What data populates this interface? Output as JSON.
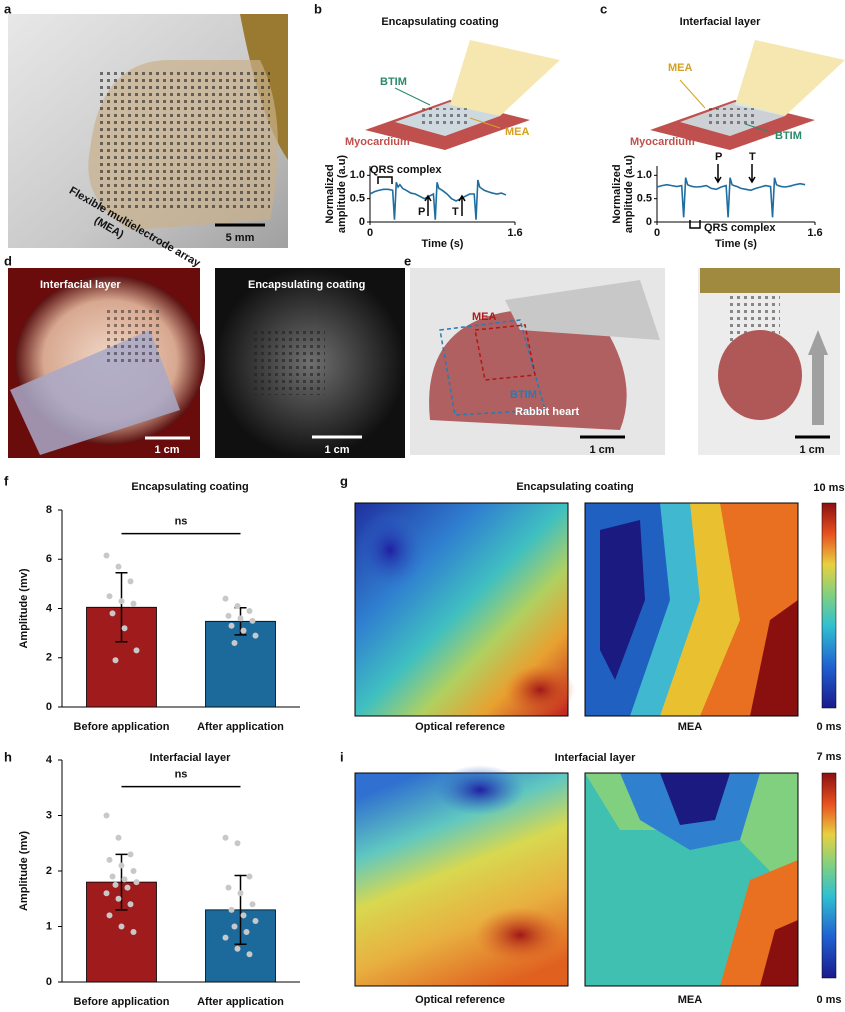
{
  "panel_letters": [
    "a",
    "b",
    "c",
    "d",
    "e",
    "f",
    "g",
    "h",
    "i"
  ],
  "photo_a": {
    "label_line1": "Flexible multielectrode array",
    "label_line2": "(MEA)",
    "scale": "5 mm"
  },
  "schematic_b": {
    "title": "Encapsulating coating",
    "btim": "BTIM",
    "mea": "MEA",
    "tissue": "Myocardium"
  },
  "schematic_c": {
    "title": "Interfacial layer",
    "btim": "BTIM",
    "mea": "MEA",
    "tissue": "Myocardium"
  },
  "photo_d": {
    "left_label": "Interfacial layer",
    "right_label": "Encapsulating coating",
    "left_scale": "1 cm",
    "right_scale": "1 cm"
  },
  "photo_e": {
    "mea": "MEA",
    "btim": "BTIM",
    "heart": "Rabbit heart",
    "left_scale": "1 cm",
    "right_scale": "1 cm"
  },
  "heatmaps": [
    {
      "title": "Encapsulating coating",
      "left_label": "Optical reference",
      "right_label": "MEA",
      "colorbar_max": "10 ms",
      "colorbar_min": "0 ms"
    },
    {
      "title": "Interfacial layer",
      "left_label": "Optical reference",
      "right_label": "MEA",
      "colorbar_max": "7 ms",
      "colorbar_min": "0 ms"
    }
  ],
  "chart_data": [
    {
      "type": "line",
      "xlabel": "Time (s)",
      "ylabel": [
        "Normalized",
        "amplitude (a.u)"
      ],
      "color": "#1f6ea0",
      "xlim": [
        0,
        1.6
      ],
      "xticks": [
        0,
        1.6
      ],
      "ylim": [
        0,
        1.2
      ],
      "yticks": [
        0,
        0.5,
        {
          "value": 1,
          "label": "1.0"
        }
      ],
      "annotations": [
        "QRS complex",
        "P",
        "T"
      ],
      "x": [
        0,
        0.05,
        0.1,
        0.15,
        0.2,
        0.25,
        0.27,
        0.29,
        0.31,
        0.33,
        0.36,
        0.4,
        0.45,
        0.5,
        0.55,
        0.6,
        0.65,
        0.7,
        0.72,
        0.74,
        0.76,
        0.78,
        0.81,
        0.85,
        0.9,
        0.95,
        1.0,
        1.05,
        1.1,
        1.15,
        1.17,
        1.19,
        1.21,
        1.23,
        1.26,
        1.3,
        1.35,
        1.4,
        1.45,
        1.5
      ],
      "values": [
        0.6,
        0.65,
        0.68,
        0.7,
        0.7,
        0.68,
        0.05,
        0.85,
        0.75,
        0.8,
        0.72,
        0.68,
        0.62,
        0.6,
        0.55,
        0.5,
        0.55,
        0.6,
        0.05,
        0.85,
        0.72,
        0.7,
        0.66,
        0.6,
        0.5,
        0.45,
        0.5,
        0.55,
        0.6,
        0.6,
        0.05,
        0.9,
        0.75,
        0.72,
        0.68,
        0.65,
        0.62,
        0.6,
        0.62,
        0.58
      ]
    },
    {
      "type": "line",
      "xlabel": "Time (s)",
      "ylabel": [
        "Normalized",
        "amplitude (a.u)"
      ],
      "color": "#1f6ea0",
      "xlim": [
        0,
        1.6
      ],
      "xticks": [
        0,
        1.6
      ],
      "ylim": [
        0,
        1.2
      ],
      "yticks": [
        0,
        0.5,
        {
          "value": 1,
          "label": "1.0"
        }
      ],
      "annotations": [
        "QRS complex",
        "P",
        "T"
      ],
      "x": [
        0,
        0.05,
        0.1,
        0.15,
        0.2,
        0.25,
        0.27,
        0.29,
        0.31,
        0.33,
        0.36,
        0.4,
        0.45,
        0.5,
        0.55,
        0.6,
        0.65,
        0.7,
        0.72,
        0.74,
        0.76,
        0.78,
        0.81,
        0.85,
        0.9,
        0.95,
        1.0,
        1.05,
        1.1,
        1.15,
        1.17,
        1.19,
        1.21,
        1.23,
        1.26,
        1.3,
        1.35,
        1.4,
        1.45,
        1.5
      ],
      "values": [
        0.75,
        0.78,
        0.8,
        0.78,
        0.76,
        0.78,
        0.1,
        0.95,
        0.8,
        0.78,
        0.76,
        0.75,
        0.76,
        0.78,
        0.72,
        0.7,
        0.75,
        0.78,
        0.1,
        0.95,
        0.8,
        0.78,
        0.76,
        0.72,
        0.7,
        0.68,
        0.72,
        0.75,
        0.78,
        0.76,
        0.1,
        0.95,
        0.8,
        0.78,
        0.76,
        0.75,
        0.77,
        0.8,
        0.82,
        0.8
      ]
    },
    {
      "type": "bar",
      "title": "Encapsulating coating",
      "ylabel": "Amplitude (mv)",
      "annotation": "ns",
      "categories": [
        "Before application",
        "After application"
      ],
      "values": [
        4.05,
        3.48
      ],
      "errors": [
        1.4,
        0.55
      ],
      "colors": [
        "#a01c1c",
        "#1c6a9c"
      ],
      "ylim": [
        0,
        8
      ],
      "yticks": [
        0,
        2,
        4,
        6,
        8
      ],
      "points": [
        [
          6.15,
          5.7,
          5.1,
          4.5,
          4.3,
          4.2,
          3.8,
          3.2,
          2.3,
          1.9
        ],
        [
          4.4,
          4.1,
          3.9,
          3.7,
          3.6,
          3.5,
          3.3,
          3.1,
          2.9,
          2.6
        ]
      ]
    },
    {
      "type": "bar",
      "title": "Interfacial layer",
      "ylabel": "Amplitude (mv)",
      "annotation": "ns",
      "categories": [
        "Before application",
        "After application"
      ],
      "values": [
        1.8,
        1.3
      ],
      "errors": [
        0.5,
        0.62
      ],
      "colors": [
        "#a01c1c",
        "#1c6a9c"
      ],
      "ylim": [
        0,
        4
      ],
      "yticks": [
        0,
        1,
        2,
        3,
        4
      ],
      "points": [
        [
          3.0,
          2.6,
          2.3,
          2.2,
          2.1,
          2.0,
          1.9,
          1.85,
          1.8,
          1.75,
          1.7,
          1.6,
          1.5,
          1.4,
          1.2,
          1.0,
          0.9
        ],
        [
          2.6,
          2.5,
          1.9,
          1.7,
          1.6,
          1.4,
          1.3,
          1.2,
          1.1,
          1.0,
          0.9,
          0.8,
          0.6,
          0.5
        ]
      ]
    }
  ]
}
